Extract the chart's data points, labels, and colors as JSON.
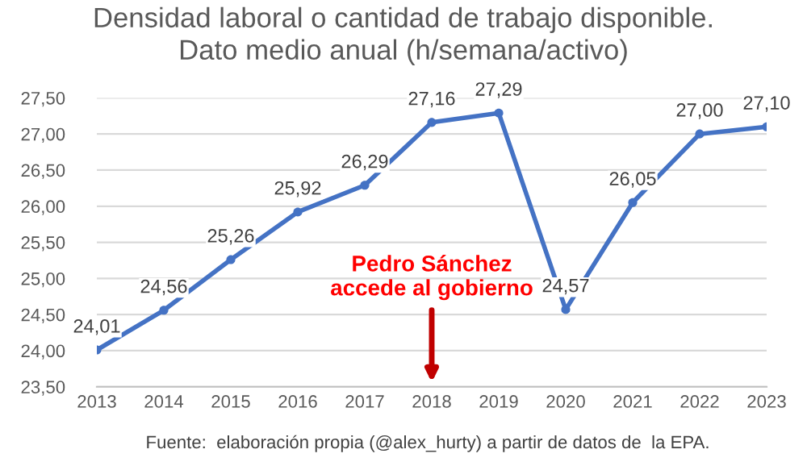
{
  "chart_data": {
    "type": "line",
    "title": "Densidad laboral o cantidad de trabajo disponible.\nDato medio anual (h/semana/activo)",
    "x": [
      2013,
      2014,
      2015,
      2016,
      2017,
      2018,
      2019,
      2020,
      2021,
      2022,
      2023
    ],
    "series": [
      {
        "color": "#4472c4",
        "values": [
          24.01,
          24.56,
          25.26,
          25.92,
          26.29,
          27.16,
          27.29,
          24.57,
          26.05,
          27.0,
          27.1
        ],
        "value_labels": [
          "24,01",
          "24,56",
          "25,26",
          "25,92",
          "26,29",
          "27,16",
          "27,29",
          "24,57",
          "26,05",
          "27,00",
          "27,10"
        ]
      }
    ],
    "xlim": [
      2013,
      2023
    ],
    "xticks": [
      2013,
      2014,
      2015,
      2016,
      2017,
      2018,
      2019,
      2020,
      2021,
      2022,
      2023
    ],
    "ylim": [
      23.5,
      27.5
    ],
    "yticks": [
      {
        "value": 23.5,
        "label": "23,50"
      },
      {
        "value": 24.0,
        "label": "24,00"
      },
      {
        "value": 24.5,
        "label": "24,50"
      },
      {
        "value": 25.0,
        "label": "25,00"
      },
      {
        "value": 25.5,
        "label": "25,50"
      },
      {
        "value": 26.0,
        "label": "26,00"
      },
      {
        "value": 26.5,
        "label": "26,50"
      },
      {
        "value": 27.0,
        "label": "27,00"
      },
      {
        "value": 27.5,
        "label": "27,50"
      }
    ],
    "grid": "y",
    "marker": "circle",
    "line_style": "solid",
    "annotations": [
      "Pedro Sánchez\naccede al gobierno",
      "Fuente:  elaboración propia (@alex_hurty) a partir de datos de  la EPA."
    ]
  }
}
